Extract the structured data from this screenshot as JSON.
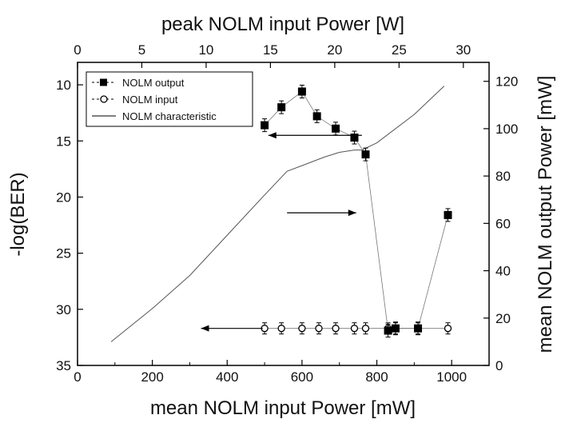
{
  "chart_data": {
    "type": "scatter",
    "xlabel": "mean NOLM input Power [mW]",
    "x2label": "peak NOLM input Power [W]",
    "ylabel": "-log(BER)",
    "y2label": "mean NOLM output Power [mW]",
    "xlim": [
      0,
      1100
    ],
    "x2lim": [
      0,
      32
    ],
    "ylim": [
      35,
      8
    ],
    "y2lim": [
      0,
      128
    ],
    "x_ticks": [
      0,
      200,
      400,
      600,
      800,
      1000
    ],
    "x2_ticks": [
      0,
      5,
      10,
      15,
      20,
      25,
      30
    ],
    "y_ticks": [
      10,
      15,
      20,
      25,
      30,
      35
    ],
    "y2_ticks": [
      0,
      20,
      40,
      60,
      80,
      100,
      120
    ],
    "legend_position": "top-left",
    "series": [
      {
        "name": "NOLM output",
        "axis": "left",
        "marker": "filled-square",
        "x": [
          500,
          545,
          600,
          640,
          690,
          740,
          770,
          830,
          850,
          910,
          990
        ],
        "y": [
          13.6,
          12.0,
          10.6,
          12.8,
          13.9,
          14.7,
          16.2,
          31.9,
          31.7,
          31.7,
          21.6
        ]
      },
      {
        "name": "NOLM input",
        "axis": "left",
        "marker": "open-circle",
        "x": [
          500,
          545,
          600,
          645,
          690,
          740,
          770,
          830,
          850,
          910,
          990
        ],
        "y": [
          31.7,
          31.7,
          31.7,
          31.7,
          31.7,
          31.7,
          31.7,
          31.7,
          31.7,
          31.7,
          31.7
        ]
      },
      {
        "name": "NOLM characteristic",
        "axis": "right",
        "marker": "line",
        "x": [
          90,
          200,
          300,
          400,
          500,
          560,
          660,
          700,
          740,
          760,
          800,
          900,
          980
        ],
        "y": [
          10,
          24,
          38,
          55,
          72,
          82,
          88,
          90,
          91,
          91,
          94,
          106,
          118
        ]
      }
    ],
    "annotations": [
      {
        "type": "arrow",
        "direction": "left",
        "x_from": 760,
        "x_to": 510,
        "y": 14.5,
        "axis": "left"
      },
      {
        "type": "arrow",
        "direction": "right",
        "x_from": 560,
        "x_to": 745,
        "y": 21.4,
        "axis": "left"
      },
      {
        "type": "arrow",
        "direction": "left",
        "x_from": 495,
        "x_to": 330,
        "y": 31.7,
        "axis": "left"
      }
    ]
  }
}
